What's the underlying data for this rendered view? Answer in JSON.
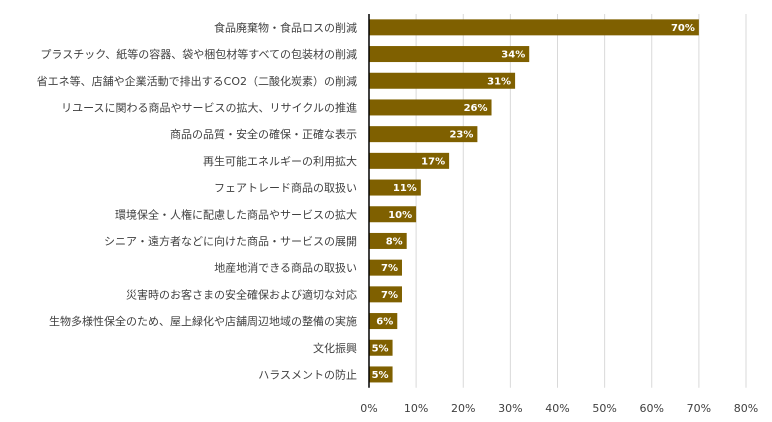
{
  "chart_data": {
    "type": "bar",
    "orientation": "horizontal",
    "categories": [
      "食品廃棄物・食品ロスの削減",
      "プラスチック、紙等の容器、袋や梱包材等すべての包装材の削減",
      "省エネ等、店舗や企業活動で排出するCO2（二酸化炭素）の削減",
      "リユースに関わる商品やサービスの拡大、リサイクルの推進",
      "商品の品質・安全の確保・正確な表示",
      "再生可能エネルギーの利用拡大",
      "フェアトレード商品の取扱い",
      "環境保全・人権に配慮した商品やサービスの拡大",
      "シニア・遠方者などに向けた商品・サービスの展開",
      "地産地消できる商品の取扱い",
      "災害時のお客さまの安全確保および適切な対応",
      "生物多様性保全のため、屋上緑化や店舗周辺地域の整備の実施",
      "文化振興",
      "ハラスメントの防止"
    ],
    "values": [
      70,
      34,
      31,
      26,
      23,
      17,
      11,
      10,
      8,
      7,
      7,
      6,
      5,
      5
    ],
    "data_labels": [
      "70%",
      "34%",
      "31%",
      "26%",
      "23%",
      "17%",
      "11%",
      "10%",
      "8%",
      "7%",
      "7%",
      "6%",
      "5%",
      "5%"
    ],
    "xlim": [
      0,
      80
    ],
    "ticks": [
      "0%",
      "10%",
      "20%",
      "30%",
      "40%",
      "50%",
      "60%",
      "70%",
      "80%"
    ],
    "tick_values": [
      0,
      10,
      20,
      30,
      40,
      50,
      60,
      70,
      80
    ],
    "grid": true,
    "bar_color": "#7f6000"
  }
}
